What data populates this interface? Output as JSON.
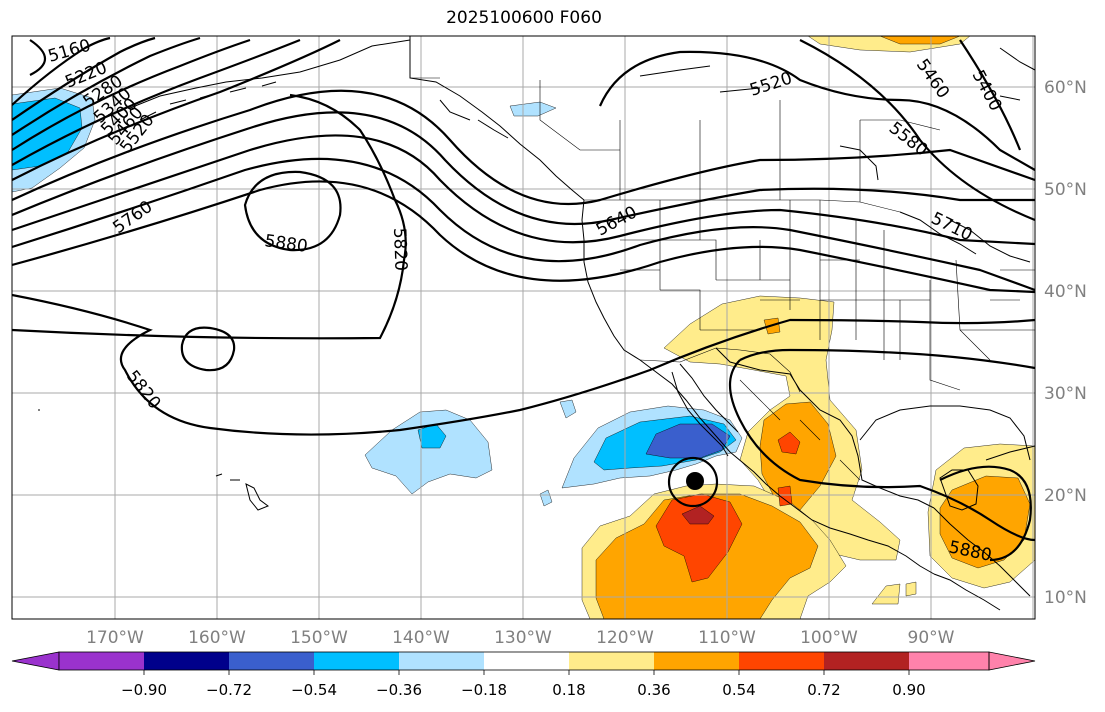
{
  "title": "2025100600 F060",
  "colors": {
    "very_strong_neg": "#9a32cd",
    "neg_090": "#00008b",
    "neg_072": "#3a5fcd",
    "neg_054": "#00bfff",
    "neg_036": "#b0e2ff",
    "neutral": "#ffffff",
    "pos_018": "#ffec8b",
    "pos_036": "#ffa500",
    "pos_054": "#ff4500",
    "pos_072": "#b22222",
    "pos_090": "#ff82ab",
    "land": "#000000",
    "grid": "#a9a9a9"
  },
  "lon_labels": [
    "170°W",
    "160°W",
    "150°W",
    "140°W",
    "130°W",
    "120°W",
    "110°W",
    "100°W",
    "90°W"
  ],
  "lat_labels": [
    "60°N",
    "50°N",
    "40°N",
    "30°N",
    "20°N",
    "10°N"
  ],
  "colorbar_ticks": [
    "−0.90",
    "−0.72",
    "−0.54",
    "−0.36",
    "−0.18",
    "0.18",
    "0.36",
    "0.54",
    "0.72",
    "0.90"
  ],
  "contour_labels": {
    "c5160": "5160",
    "c5220": "5220",
    "c5280": "5280",
    "c5340": "5340",
    "c5400a": "5400",
    "c5460a": "5460",
    "c5520a": "5520",
    "c5520b": "5520",
    "c5460b": "5460",
    "c5400b": "5400",
    "c5580": "5580",
    "c5640": "5640",
    "c5710": "5710",
    "c5760": "5760",
    "c5880a": "5880",
    "c5820a": "5820",
    "c5820b": "5820",
    "c5880b": "5880"
  },
  "storm_marker": "tropical-cyclone-center"
}
